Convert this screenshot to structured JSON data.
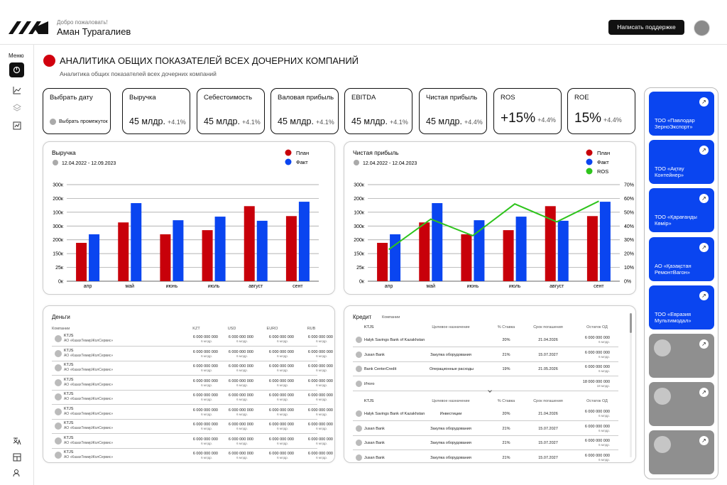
{
  "header": {
    "welcome": "Добро пожаловать!",
    "name": "Аман Турагалиев",
    "support_button": "Написать поддержке"
  },
  "sidebar": {
    "menu_label": "Меню"
  },
  "page": {
    "title": "АНАЛИТИКА ОБЩИХ ПОКАЗАТЕЛЕЙ ВСЕХ ДОЧЕРНИХ КОМПАНИЙ",
    "subtitle": "Аналитика общих показателей всех дочерних компаний"
  },
  "kpis": [
    {
      "label": "Выбрать дату",
      "sub": "Выбрать промежуток"
    },
    {
      "label": "Выручка",
      "value": "45 млдр.",
      "change": "+4.1%"
    },
    {
      "label": "Себестоимость",
      "value": "45 млдр.",
      "change": "+4.1%"
    },
    {
      "label": "Валовая прибыль",
      "value": "45 млдр.",
      "change": "+4.1%"
    },
    {
      "label": "EBITDA",
      "value": "45 млдр.",
      "change": "+4.1%"
    },
    {
      "label": "Чистая прибыль",
      "value": "45 млдр.",
      "change": "+4.4%"
    },
    {
      "label": "ROS",
      "value": "+15%",
      "change": "+4.4%"
    },
    {
      "label": "ROE",
      "value": "15%",
      "change": "+4.4%"
    }
  ],
  "chart_data": [
    {
      "type": "bar",
      "title": "Выручка",
      "date": "12.04.2022 - 12.09.2023",
      "categories": [
        "апр",
        "май",
        "июнь",
        "июль",
        "август",
        "сент"
      ],
      "series": [
        {
          "name": "План",
          "color": "#c8000a",
          "values": [
            139,
            213,
            170,
            185,
            272,
            236
          ]
        },
        {
          "name": "Факт",
          "color": "#0a45f0",
          "values": [
            170,
            283,
            221,
            234,
            219,
            288
          ]
        }
      ],
      "ylim": [
        0,
        350
      ],
      "yticks": [
        {
          "value": 0,
          "label": "0к"
        },
        {
          "value": 50,
          "label": "25к"
        },
        {
          "value": 100,
          "label": "150к"
        },
        {
          "value": 150,
          "label": "200к"
        },
        {
          "value": 200,
          "label": "300к"
        },
        {
          "value": 250,
          "label": "100к"
        },
        {
          "value": 300,
          "label": "200к"
        },
        {
          "value": 350,
          "label": "300к"
        }
      ],
      "grid": true
    },
    {
      "type": "bar",
      "title": "Чистая прибыль",
      "date": "12.04.2022 - 12.04.2023",
      "categories": [
        "апр",
        "май",
        "июнь",
        "июль",
        "август",
        "сент"
      ],
      "series": [
        {
          "name": "План",
          "color": "#c8000a",
          "values": [
            139,
            213,
            170,
            185,
            272,
            236
          ]
        },
        {
          "name": "Факт",
          "color": "#0a45f0",
          "values": [
            170,
            283,
            221,
            234,
            219,
            288
          ]
        },
        {
          "name": "ROS",
          "color": "#2ec41c",
          "type": "line",
          "axis": "y2",
          "values": [
            23,
            45,
            33,
            56,
            43,
            58
          ]
        }
      ],
      "ylim": [
        0,
        350
      ],
      "yticks": [
        {
          "value": 0,
          "label": "0к"
        },
        {
          "value": 50,
          "label": "25к"
        },
        {
          "value": 100,
          "label": "150к"
        },
        {
          "value": 150,
          "label": "200к"
        },
        {
          "value": 200,
          "label": "300к"
        },
        {
          "value": 250,
          "label": "100к"
        },
        {
          "value": 300,
          "label": "200к"
        },
        {
          "value": 350,
          "label": "300к"
        }
      ],
      "y2lim": [
        0,
        70
      ],
      "y2ticks": [
        {
          "value": 0,
          "label": "0%"
        },
        {
          "value": 10,
          "label": "10%"
        },
        {
          "value": 20,
          "label": "20%"
        },
        {
          "value": 30,
          "label": "30%"
        },
        {
          "value": 40,
          "label": "40%"
        },
        {
          "value": 50,
          "label": "50%"
        },
        {
          "value": 60,
          "label": "60%"
        },
        {
          "value": 70,
          "label": "70%"
        }
      ],
      "grid": true
    }
  ],
  "money": {
    "title": "Деньги",
    "headers": [
      "Компании",
      "KZT",
      "USD",
      "EURO",
      "RUB"
    ],
    "rows": [
      {
        "company": "KTJS",
        "org": "АО «КазахТемирЖолСервис»",
        "cells": [
          [
            "6 000 000 000",
            "6 млдр."
          ],
          [
            "6 000 000 000",
            "6 млдр."
          ],
          [
            "6 000 000 000",
            "6 млдр."
          ],
          [
            "6 000 000 000",
            "6 млдр."
          ]
        ]
      },
      {
        "company": "KTJS",
        "org": "АО «КазахТемирЖолСервис»",
        "cells": [
          [
            "6 000 000 000",
            "6 млдр."
          ],
          [
            "6 000 000 000",
            "6 млдр."
          ],
          [
            "6 000 000 000",
            "6 млдр."
          ],
          [
            "6 000 000 000",
            "6 млдр."
          ]
        ]
      },
      {
        "company": "KTJS",
        "org": "АО «КазахТемирЖолСервис»",
        "cells": [
          [
            "6 000 000 000",
            "6 млдр."
          ],
          [
            "6 000 000 000",
            "6 млдр."
          ],
          [
            "6 000 000 000",
            "6 млдр."
          ],
          [
            "6 000 000 000",
            "6 млдр."
          ]
        ]
      },
      {
        "company": "KTJS",
        "org": "АО «КазахТемирЖолСервис»",
        "cells": [
          [
            "6 000 000 000",
            "6 млдр."
          ],
          [
            "6 000 000 000",
            "6 млдр."
          ],
          [
            "6 000 000 000",
            "6 млдр."
          ],
          [
            "6 000 000 000",
            "6 млдр."
          ]
        ]
      },
      {
        "company": "KTJS",
        "org": "АО «КазахТемирЖолСервис»",
        "cells": [
          [
            "6 000 000 000",
            "6 млдр."
          ],
          [
            "6 000 000 000",
            "6 млдр."
          ],
          [
            "6 000 000 000",
            "6 млдр."
          ],
          [
            "6 000 000 000",
            "6 млдр."
          ]
        ]
      },
      {
        "company": "KTJS",
        "org": "АО «КазахТемирЖолСервис»",
        "cells": [
          [
            "6 000 000 000",
            "6 млдр."
          ],
          [
            "6 000 000 000",
            "6 млдр."
          ],
          [
            "6 000 000 000",
            "6 млдр."
          ],
          [
            "6 000 000 000",
            "6 млдр."
          ]
        ]
      },
      {
        "company": "KTJS",
        "org": "АО «КазахТемирЖолСервис»",
        "cells": [
          [
            "6 000 000 000",
            "6 млдр."
          ],
          [
            "6 000 000 000",
            "6 млдр."
          ],
          [
            "6 000 000 000",
            "6 млдр."
          ],
          [
            "6 000 000 000",
            "6 млдр."
          ]
        ]
      },
      {
        "company": "KTJS",
        "org": "АО «КазахТемирЖолСервис»",
        "cells": [
          [
            "6 000 000 000",
            "6 млдр."
          ],
          [
            "6 000 000 000",
            "6 млдр."
          ],
          [
            "6 000 000 000",
            "6 млдр."
          ],
          [
            "6 000 000 000",
            "6 млдр."
          ]
        ]
      },
      {
        "company": "KTJS",
        "org": "АО «КазахТемирЖолСервис»",
        "cells": [
          [
            "6 000 000 000",
            "6 млдр."
          ],
          [
            "6 000 000 000",
            "6 млдр."
          ],
          [
            "6 000 000 000",
            "6 млдр."
          ],
          [
            "6 000 000 000",
            "6 млдр."
          ]
        ]
      }
    ]
  },
  "credit": {
    "title": "Кредит",
    "filter": "Компании",
    "groups": [
      {
        "headers": [
          "KTJS",
          "Целевое назначение",
          "% Ставка",
          "Срок погашения",
          "Остаток ОД"
        ],
        "rows": [
          {
            "bank": "Halyk Savings Bank of Kazakhstan",
            "rate": "20%",
            "date": "21.04.2026",
            "amount": "6 000 000 000",
            "short": "6 млдр."
          },
          {
            "bank": "Jusan Bank",
            "purpose": "Закупка оборудования",
            "rate": "21%",
            "date": "15.07.2027",
            "amount": "6 000 000 000",
            "short": "6 млдр."
          },
          {
            "bank": "Bank CenterCredit",
            "purpose": "Операционные расходы",
            "rate": "19%",
            "date": "21.05.2026",
            "amount": "6 000 000 000",
            "short": "6 млдр."
          }
        ],
        "total": {
          "label": "Итого",
          "amount": "18 000 000 000",
          "short": "18 млдр."
        }
      },
      {
        "headers": [
          "KTJS",
          "Целевое назначение",
          "% Ставка",
          "Срок погашения",
          "Остаток ОД"
        ],
        "rows": [
          {
            "bank": "Halyk Savings Bank of Kazakhstan",
            "purpose": "Инвестиции",
            "rate": "20%",
            "date": "21.04.2026",
            "amount": "6 000 000 000",
            "short": "6 млдр."
          },
          {
            "bank": "Jusan Bank",
            "purpose": "Закупка оборудования",
            "rate": "21%",
            "date": "15.07.2027",
            "amount": "6 000 000 000",
            "short": "6 млдр."
          },
          {
            "bank": "Jusan Bank",
            "purpose": "Закупка оборудования",
            "rate": "21%",
            "date": "15.07.2027",
            "amount": "6 000 000 000",
            "short": "6 млдр."
          },
          {
            "bank": "Jusan Bank",
            "purpose": "Закупка оборудования",
            "rate": "21%",
            "date": "15.07.2027",
            "amount": "6 000 000 000",
            "short": "6 млдр."
          }
        ]
      }
    ]
  },
  "companies": [
    "ТОО «Павлодар ЗерноЭкспорт»",
    "ТОО «Ақтау Контейнер»",
    "ТОО «Қарағанды Көмір»",
    "АО «Қазақстан РемонтВагон»",
    "ТОО «Евразия Мультимодал»"
  ]
}
